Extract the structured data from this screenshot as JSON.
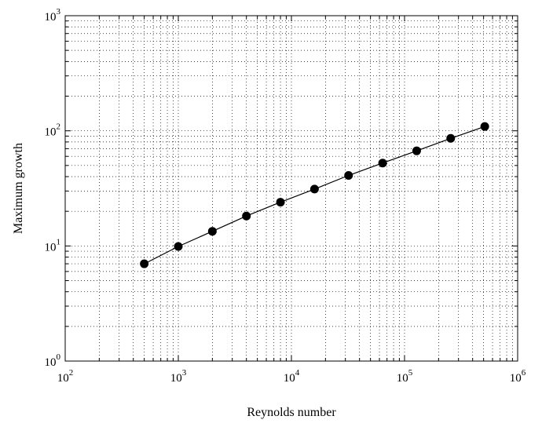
{
  "chart_data": {
    "type": "line",
    "xlabel": "Reynolds number",
    "ylabel": "Maximum growth",
    "xscale": "log",
    "yscale": "log",
    "xlim": [
      100,
      1000000
    ],
    "ylim": [
      1,
      1000
    ],
    "grid": true,
    "grid_style": "dotted",
    "x_ticks": [
      {
        "base": "10",
        "exp": "2"
      },
      {
        "base": "10",
        "exp": "3"
      },
      {
        "base": "10",
        "exp": "4"
      },
      {
        "base": "10",
        "exp": "5"
      },
      {
        "base": "10",
        "exp": "6"
      }
    ],
    "y_ticks": [
      {
        "base": "10",
        "exp": "0"
      },
      {
        "base": "10",
        "exp": "1"
      },
      {
        "base": "10",
        "exp": "2"
      },
      {
        "base": "10",
        "exp": "3"
      }
    ],
    "series": [
      {
        "marker": "circle",
        "color": "#000000",
        "x": [
          500,
          1000,
          2000,
          4000,
          8000,
          16000,
          32000,
          64000,
          128000,
          256000,
          512000
        ],
        "y": [
          7.0,
          9.9,
          13.4,
          18.2,
          24.0,
          31.2,
          41.0,
          52.5,
          67.0,
          86.0,
          109.0
        ]
      }
    ]
  }
}
